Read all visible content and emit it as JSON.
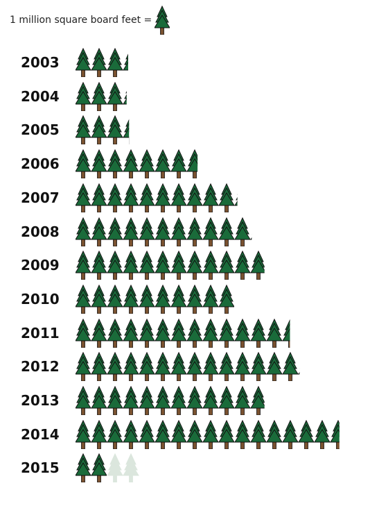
{
  "legend": {
    "text": "1 million square board feet =",
    "icon": "tree-icon"
  },
  "colors": {
    "tree_fill": "#1a6b3a",
    "tree_stroke": "#111111",
    "trunk": "#7a5230",
    "faded": "#dbe6dd"
  },
  "chart_data": {
    "type": "pictograph",
    "unit": "1 million square board feet",
    "categories": [
      "2003",
      "2004",
      "2005",
      "2006",
      "2007",
      "2008",
      "2009",
      "2010",
      "2011",
      "2012",
      "2013",
      "2014",
      "2015"
    ],
    "values": [
      3.35,
      3.25,
      3.4,
      7.7,
      10.2,
      11.1,
      11.9,
      10.0,
      13.5,
      14.1,
      11.9,
      16.6,
      2.0
    ],
    "faded_trail": {
      "category": "2015",
      "icons": 2
    }
  }
}
